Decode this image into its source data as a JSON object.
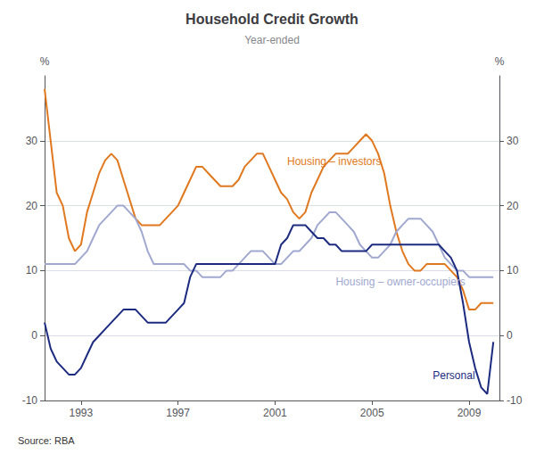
{
  "chart_data": {
    "type": "line",
    "title": "Household Credit Growth",
    "subtitle": "Year-ended",
    "source": "Source: RBA",
    "ylabel": "%",
    "y2label": "%",
    "x": [
      1991.5,
      1991.75,
      1992.0,
      1992.25,
      1992.5,
      1992.75,
      1993.0,
      1993.25,
      1993.5,
      1993.75,
      1994.0,
      1994.25,
      1994.5,
      1994.75,
      1995.0,
      1995.25,
      1995.5,
      1995.75,
      1996.0,
      1996.25,
      1996.5,
      1996.75,
      1997.0,
      1997.25,
      1997.5,
      1997.75,
      1998.0,
      1998.25,
      1998.5,
      1998.75,
      1999.0,
      1999.25,
      1999.5,
      1999.75,
      2000.0,
      2000.25,
      2000.5,
      2000.75,
      2001.0,
      2001.25,
      2001.5,
      2001.75,
      2002.0,
      2002.25,
      2002.5,
      2002.75,
      2003.0,
      2003.25,
      2003.5,
      2003.75,
      2004.0,
      2004.25,
      2004.5,
      2004.75,
      2005.0,
      2005.25,
      2005.5,
      2005.75,
      2006.0,
      2006.25,
      2006.5,
      2006.75,
      2007.0,
      2007.25,
      2007.5,
      2007.75,
      2008.0,
      2008.25,
      2008.5,
      2008.75,
      2009.0,
      2009.25,
      2009.5,
      2009.75,
      2010.0
    ],
    "series": [
      {
        "name": "Housing – investors",
        "color": "#E07820",
        "values": [
          38,
          30,
          22,
          20,
          15,
          13,
          14,
          19,
          22,
          25,
          27,
          28,
          27,
          24,
          21,
          18,
          17,
          17,
          17,
          17,
          18,
          19,
          20,
          22,
          24,
          26,
          26,
          25,
          24,
          23,
          23,
          23,
          24,
          26,
          27,
          28,
          28,
          26,
          24,
          22,
          21,
          19,
          18,
          19,
          22,
          24,
          26,
          27,
          28,
          28,
          28,
          29,
          30,
          31,
          30,
          28,
          25,
          20,
          16,
          13,
          11,
          10,
          10,
          11,
          11,
          11,
          11,
          10,
          9,
          7,
          4,
          4,
          5,
          5,
          5
        ]
      },
      {
        "name": "Housing – owner-occupiers",
        "color": "#A0A8D0",
        "values": [
          11,
          11,
          11,
          11,
          11,
          11,
          12,
          13,
          15,
          17,
          18,
          19,
          20,
          20,
          19,
          18,
          16,
          13,
          11,
          11,
          11,
          11,
          11,
          11,
          10,
          10,
          9,
          9,
          9,
          9,
          10,
          10,
          11,
          12,
          13,
          13,
          13,
          12,
          11,
          11,
          12,
          13,
          13,
          14,
          15,
          17,
          18,
          19,
          19,
          18,
          17,
          16,
          14,
          13,
          12,
          12,
          13,
          14,
          16,
          17,
          18,
          18,
          18,
          17,
          16,
          14,
          12,
          11,
          10,
          10,
          9,
          9,
          9,
          9,
          9
        ]
      },
      {
        "name": "Personal",
        "color": "#1C2B80",
        "values": [
          2,
          -2,
          -4,
          -5,
          -6,
          -6,
          -5,
          -3,
          -1,
          0,
          1,
          2,
          3,
          4,
          4,
          4,
          3,
          2,
          2,
          2,
          2,
          3,
          4,
          5,
          9,
          11,
          11,
          11,
          11,
          11,
          11,
          11,
          11,
          11,
          11,
          11,
          11,
          11,
          11,
          14,
          15,
          17,
          17,
          17,
          16,
          15,
          15,
          14,
          14,
          13,
          13,
          13,
          13,
          13,
          14,
          14,
          14,
          14,
          14,
          14,
          14,
          14,
          14,
          14,
          14,
          14,
          13,
          12,
          10,
          5,
          -1,
          -5,
          -8,
          -9,
          -1
        ]
      }
    ],
    "annotations": [
      {
        "text": "Housing – investors",
        "x": 2001.5,
        "y": 26,
        "color": "#E07820"
      },
      {
        "text": "Housing – owner-occupiers",
        "x": 2003.5,
        "y": 7.5,
        "color": "#A0A8D0"
      },
      {
        "text": "Personal",
        "x": 2007.5,
        "y": -7,
        "color": "#1C2B80"
      }
    ],
    "xlim": [
      1991.5,
      2010.25
    ],
    "xticks": [
      {
        "value": 1993,
        "label": "1993"
      },
      {
        "value": 1997,
        "label": "1997"
      },
      {
        "value": 2001,
        "label": "2001"
      },
      {
        "value": 2005,
        "label": "2005"
      },
      {
        "value": 2009,
        "label": "2009"
      }
    ],
    "ylim": [
      -10,
      40
    ],
    "yticks": [
      -10,
      0,
      10,
      20,
      30
    ],
    "y2lim": [
      -10,
      40
    ],
    "y2ticks": [
      -10,
      0,
      10,
      20,
      30
    ],
    "grid": true
  }
}
